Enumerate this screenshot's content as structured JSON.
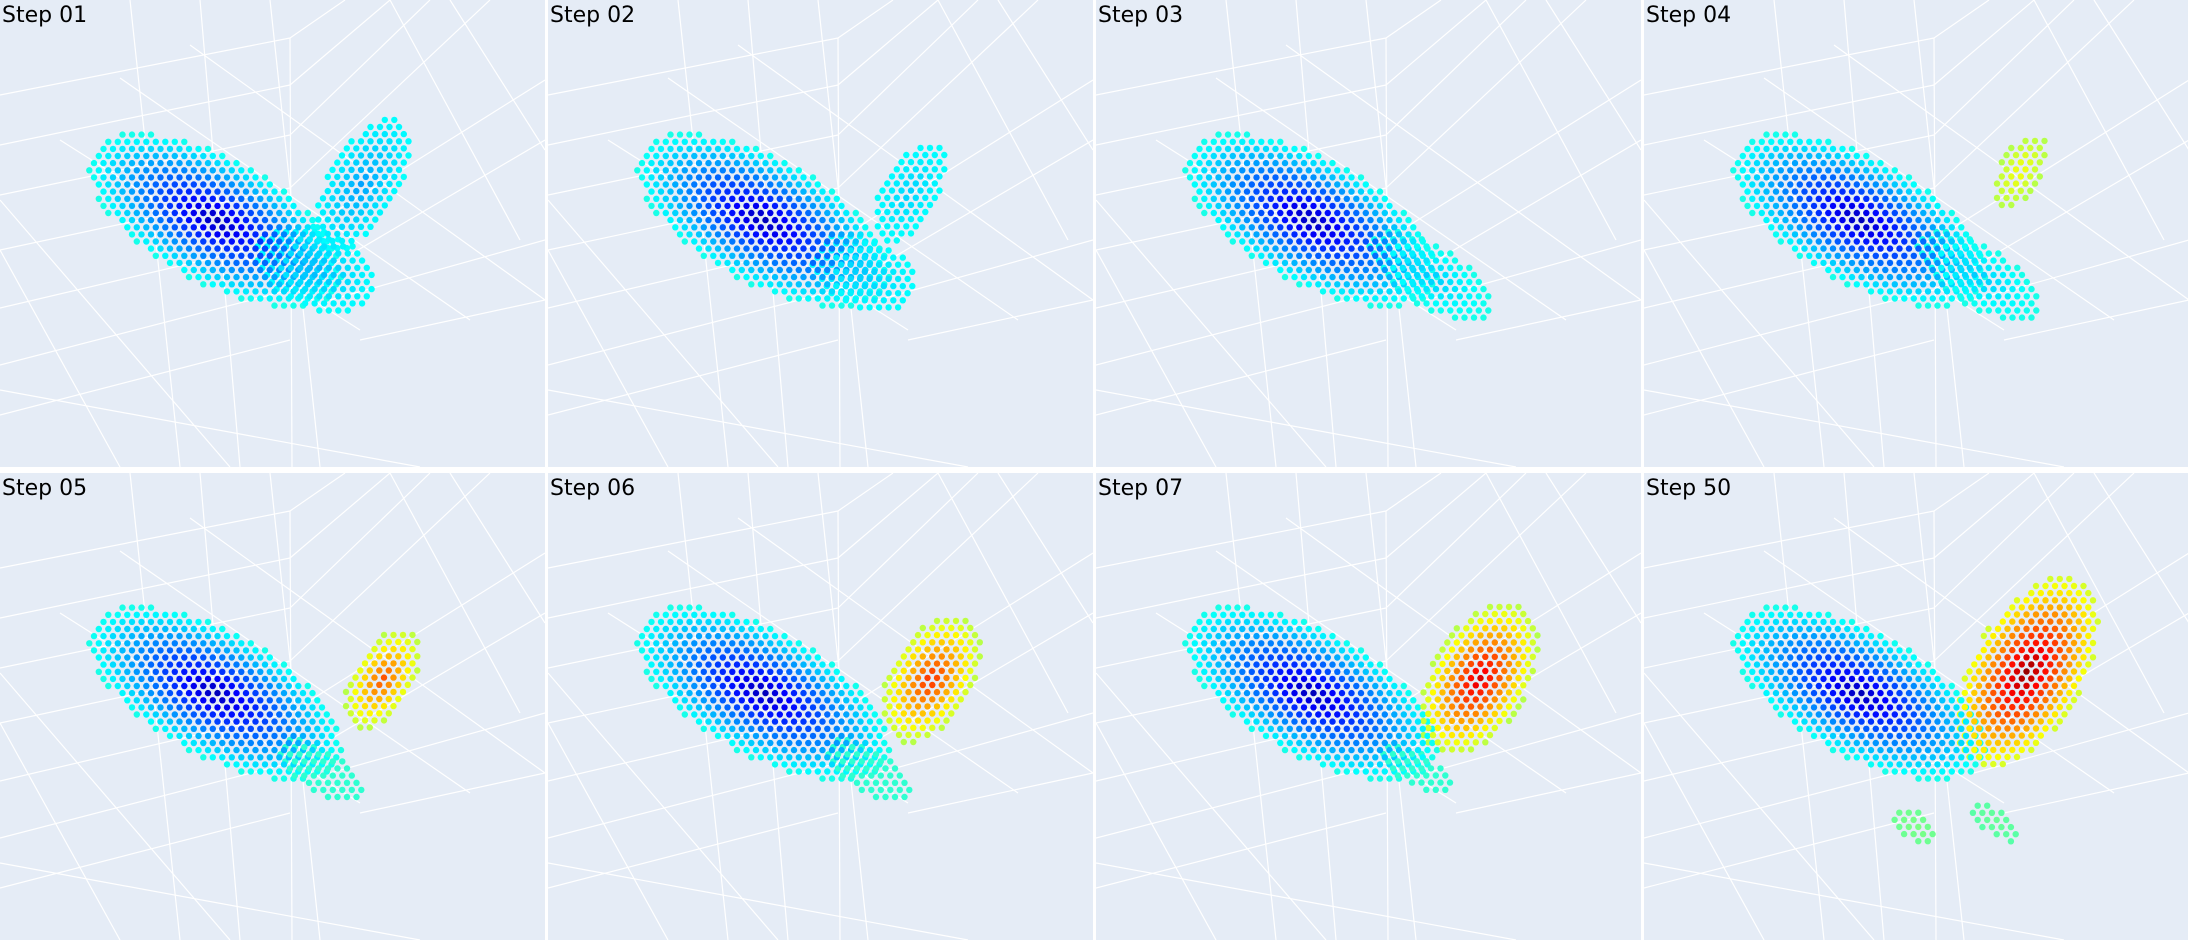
{
  "chart_data": [
    {
      "type": "scatter",
      "title": "Step 01",
      "blobs": [
        {
          "name": "left",
          "cx": 0.0,
          "cy": 0.0,
          "rx": 1.0,
          "ry": 0.45,
          "angle": 0.5,
          "peak": 0.05,
          "edge": 0.4
        },
        {
          "name": "right-wing",
          "cx": 1.05,
          "cy": -0.25,
          "rx": 0.55,
          "ry": 0.25,
          "angle": -1.05,
          "peak": 0.28,
          "edge": 0.38
        },
        {
          "name": "right-bottom",
          "cx": 0.72,
          "cy": 0.35,
          "rx": 0.45,
          "ry": 0.28,
          "angle": 0.4,
          "peak": 0.3,
          "edge": 0.38
        }
      ]
    },
    {
      "type": "scatter",
      "title": "Step 02",
      "blobs": [
        {
          "name": "left",
          "cx": 0.0,
          "cy": 0.0,
          "rx": 1.0,
          "ry": 0.45,
          "angle": 0.5,
          "peak": 0.05,
          "edge": 0.4
        },
        {
          "name": "right-wing",
          "cx": 1.05,
          "cy": -0.2,
          "rx": 0.4,
          "ry": 0.2,
          "angle": -1.05,
          "peak": 0.33,
          "edge": 0.38
        },
        {
          "name": "right-bottom",
          "cx": 0.72,
          "cy": 0.38,
          "rx": 0.4,
          "ry": 0.25,
          "angle": 0.4,
          "peak": 0.32,
          "edge": 0.38
        }
      ]
    },
    {
      "type": "scatter",
      "title": "Step 03",
      "blobs": [
        {
          "name": "left",
          "cx": 0.0,
          "cy": 0.0,
          "rx": 1.0,
          "ry": 0.45,
          "angle": 0.5,
          "peak": 0.05,
          "edge": 0.4
        },
        {
          "name": "right-bottom",
          "cx": 0.85,
          "cy": 0.4,
          "rx": 0.5,
          "ry": 0.22,
          "angle": 0.55,
          "peak": 0.32,
          "edge": 0.4
        }
      ]
    },
    {
      "type": "scatter",
      "title": "Step 04",
      "blobs": [
        {
          "name": "left",
          "cx": 0.0,
          "cy": 0.0,
          "rx": 1.0,
          "ry": 0.45,
          "angle": 0.5,
          "peak": 0.05,
          "edge": 0.4
        },
        {
          "name": "right-bottom",
          "cx": 0.85,
          "cy": 0.4,
          "rx": 0.5,
          "ry": 0.22,
          "angle": 0.55,
          "peak": 0.32,
          "edge": 0.4
        },
        {
          "name": "right-cluster",
          "cx": 1.15,
          "cy": -0.35,
          "rx": 0.3,
          "ry": 0.15,
          "angle": -1.05,
          "peak": 0.62,
          "edge": 0.55
        }
      ]
    },
    {
      "type": "scatter",
      "title": "Step 05",
      "blobs": [
        {
          "name": "left",
          "cx": 0.0,
          "cy": 0.0,
          "rx": 1.0,
          "ry": 0.45,
          "angle": 0.5,
          "peak": 0.05,
          "edge": 0.4
        },
        {
          "name": "right-bottom",
          "cx": 0.75,
          "cy": 0.55,
          "rx": 0.35,
          "ry": 0.15,
          "angle": 0.55,
          "peak": 0.42,
          "edge": 0.42
        },
        {
          "name": "right-cluster",
          "cx": 1.2,
          "cy": -0.1,
          "rx": 0.4,
          "ry": 0.22,
          "angle": -1.05,
          "peak": 0.8,
          "edge": 0.55
        }
      ]
    },
    {
      "type": "scatter",
      "title": "Step 06",
      "blobs": [
        {
          "name": "left",
          "cx": 0.0,
          "cy": 0.0,
          "rx": 1.0,
          "ry": 0.45,
          "angle": 0.5,
          "peak": 0.05,
          "edge": 0.4
        },
        {
          "name": "right-bottom",
          "cx": 0.75,
          "cy": 0.55,
          "rx": 0.35,
          "ry": 0.15,
          "angle": 0.55,
          "peak": 0.42,
          "edge": 0.42
        },
        {
          "name": "right-cluster",
          "cx": 1.2,
          "cy": -0.1,
          "rx": 0.5,
          "ry": 0.3,
          "angle": -1.05,
          "peak": 0.84,
          "edge": 0.55
        }
      ]
    },
    {
      "type": "scatter",
      "title": "Step 07",
      "blobs": [
        {
          "name": "left",
          "cx": 0.0,
          "cy": 0.0,
          "rx": 1.0,
          "ry": 0.45,
          "angle": 0.5,
          "peak": 0.05,
          "edge": 0.4
        },
        {
          "name": "right-bottom",
          "cx": 0.75,
          "cy": 0.55,
          "rx": 0.3,
          "ry": 0.12,
          "angle": 0.55,
          "peak": 0.42,
          "edge": 0.42
        },
        {
          "name": "right-cluster",
          "cx": 1.2,
          "cy": -0.1,
          "rx": 0.6,
          "ry": 0.35,
          "angle": -1.05,
          "peak": 0.92,
          "edge": 0.55
        }
      ]
    },
    {
      "type": "scatter",
      "title": "Step 50",
      "blobs": [
        {
          "name": "left",
          "cx": 0.0,
          "cy": 0.0,
          "rx": 1.0,
          "ry": 0.45,
          "angle": 0.5,
          "peak": 0.05,
          "edge": 0.4
        },
        {
          "name": "right-cluster",
          "cx": 1.2,
          "cy": -0.15,
          "rx": 0.75,
          "ry": 0.4,
          "angle": -1.05,
          "peak": 0.98,
          "edge": 0.58
        },
        {
          "name": "bottom-left",
          "cx": 0.4,
          "cy": 0.95,
          "rx": 0.18,
          "ry": 0.1,
          "angle": 0.6,
          "peak": 0.5,
          "edge": 0.48
        },
        {
          "name": "bottom-right",
          "cx": 0.98,
          "cy": 0.92,
          "rx": 0.2,
          "ry": 0.1,
          "angle": 0.6,
          "peak": 0.48,
          "edge": 0.46
        }
      ]
    }
  ]
}
